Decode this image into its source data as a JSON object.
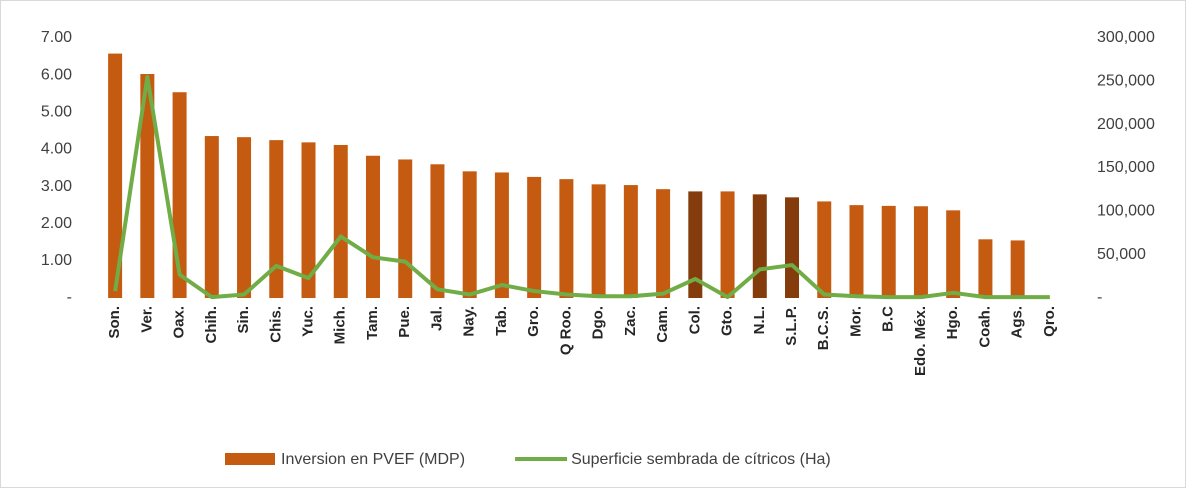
{
  "chart_data": {
    "type": "bar",
    "categories": [
      "Son.",
      "Ver.",
      "Oax.",
      "Chih.",
      "Sin.",
      "Chis.",
      "Yuc.",
      "Mich.",
      "Tam.",
      "Pue.",
      "Jal.",
      "Nay.",
      "Tab.",
      "Gro.",
      "Q Roo.",
      "Dgo.",
      "Zac.",
      "Cam.",
      "Col.",
      "Gto.",
      "N.L.",
      "S.L.P.",
      "B.C.S.",
      "Mor.",
      "B.C",
      "Edo. Méx.",
      "Hgo.",
      "Coah.",
      "Ags.",
      "Qro."
    ],
    "series": [
      {
        "name": "Inversion en PVEF (MDP)",
        "type": "bar",
        "color": "#c55a11",
        "colors": [
          "#c55a11",
          "#c55a11",
          "#c55a11",
          "#c55a11",
          "#c55a11",
          "#c55a11",
          "#c55a11",
          "#c55a11",
          "#c55a11",
          "#c55a11",
          "#c55a11",
          "#c55a11",
          "#c55a11",
          "#c55a11",
          "#c55a11",
          "#c55a11",
          "#c55a11",
          "#c55a11",
          "#843c0c",
          "#c55a11",
          "#843c0c",
          "#843c0c",
          "#c55a11",
          "#c55a11",
          "#c55a11",
          "#c55a11",
          "#c55a11",
          "#c55a11",
          "#c55a11",
          "#c55a11"
        ],
        "values": [
          6.58,
          6.03,
          5.54,
          4.36,
          4.33,
          4.25,
          4.19,
          4.12,
          3.83,
          3.73,
          3.6,
          3.41,
          3.38,
          3.26,
          3.2,
          3.06,
          3.04,
          2.93,
          2.87,
          2.87,
          2.79,
          2.71,
          2.6,
          2.5,
          2.48,
          2.47,
          2.36,
          1.58,
          1.55,
          0
        ]
      },
      {
        "name": "Superficie sembrada de cítricos (Ha)",
        "type": "line",
        "axis": "y2",
        "color": "#70ad47",
        "values": [
          8000,
          255000,
          27000,
          1000,
          4000,
          37000,
          23000,
          71000,
          47000,
          42000,
          10000,
          4000,
          15000,
          8000,
          4000,
          2000,
          2000,
          5000,
          22000,
          1000,
          33000,
          38000,
          4000,
          2000,
          1000,
          1000,
          6000,
          1000,
          1000,
          1000
        ]
      }
    ],
    "ylim": [
      0,
      7
    ],
    "yticks": [
      {
        "value": 0,
        "label": "-"
      },
      {
        "value": 1,
        "label": "1.00"
      },
      {
        "value": 2,
        "label": "2.00"
      },
      {
        "value": 3,
        "label": "3.00"
      },
      {
        "value": 4,
        "label": "4.00"
      },
      {
        "value": 5,
        "label": "5.00"
      },
      {
        "value": 6,
        "label": "6.00"
      },
      {
        "value": 7,
        "label": "7.00"
      }
    ],
    "y2lim": [
      0,
      300000
    ],
    "y2ticks": [
      {
        "value": 0,
        "label": "-"
      },
      {
        "value": 50000,
        "label": "50,000"
      },
      {
        "value": 100000,
        "label": "100,000"
      },
      {
        "value": 150000,
        "label": "150,000"
      },
      {
        "value": 200000,
        "label": "200,000"
      },
      {
        "value": 250000,
        "label": "250,000"
      },
      {
        "value": 300000,
        "label": "300,000"
      }
    ],
    "grid": false,
    "legend": "bottom"
  }
}
